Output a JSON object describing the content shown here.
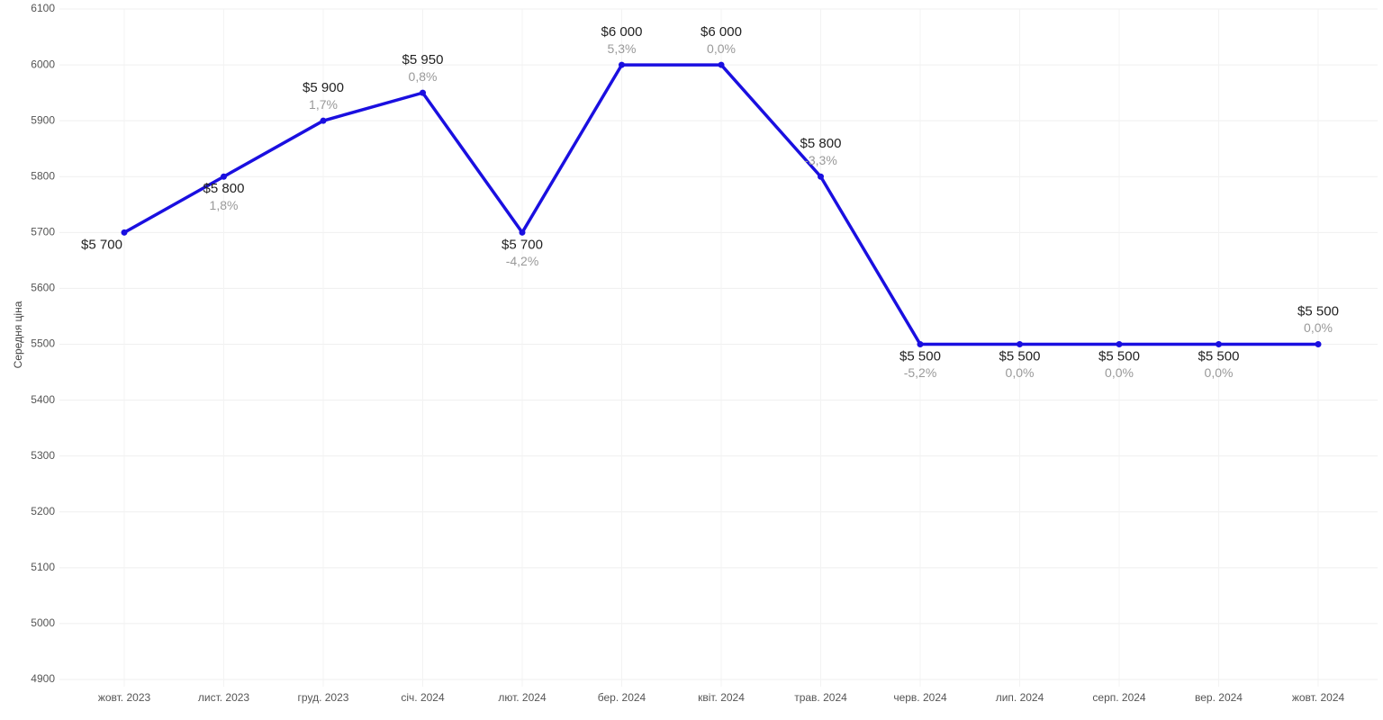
{
  "chart_data": {
    "type": "line",
    "y_label": "Середня ціна",
    "categories": [
      "жовт. 2023",
      "лист. 2023",
      "груд. 2023",
      "січ. 2024",
      "лют. 2024",
      "бер. 2024",
      "квіт. 2024",
      "трав. 2024",
      "черв. 2024",
      "лип. 2024",
      "серп. 2024",
      "вер. 2024",
      "жовт. 2024"
    ],
    "series": [
      {
        "name": null,
        "color": "#1a0fe0",
        "values": [
          5700,
          5800,
          5900,
          5950,
          5700,
          6000,
          6000,
          5800,
          5500,
          5500,
          5500,
          5500,
          5500
        ],
        "value_labels": [
          "$5 700",
          "$5 800",
          "$5 900",
          "$5 950",
          "$5 700",
          "$6 000",
          "$6 000",
          "$5 800",
          "$5 500",
          "$5 500",
          "$5 500",
          "$5 500",
          "$5 500"
        ],
        "changes": [
          null,
          1.8,
          1.7,
          0.8,
          -4.2,
          5.3,
          0.0,
          -3.3,
          -5.2,
          0.0,
          0.0,
          0.0,
          0.0
        ],
        "change_labels": [
          null,
          "1,8%",
          "1,7%",
          "0,8%",
          "-4,2%",
          "5,3%",
          "0,0%",
          "-3,3%",
          "-5,2%",
          "0,0%",
          "0,0%",
          "0,0%",
          "0,0%"
        ]
      }
    ],
    "ylim": [
      4900,
      6100
    ],
    "yticks": [
      4900,
      5000,
      5100,
      5200,
      5300,
      5400,
      5500,
      5600,
      5700,
      5800,
      5900,
      6000,
      6100
    ],
    "grid": true
  }
}
